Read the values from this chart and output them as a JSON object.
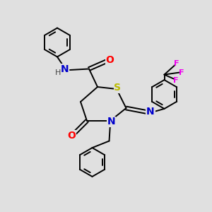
{
  "background_color": "#e0e0e0",
  "bond_color": "#000000",
  "atom_colors": {
    "N": "#0000cc",
    "O": "#ff0000",
    "S": "#bbbb00",
    "F": "#ee00ee",
    "H": "#444444",
    "C": "#000000"
  },
  "font_size_atoms": 10,
  "font_size_small": 8,
  "linewidth": 1.4,
  "ring_r": 0.65
}
